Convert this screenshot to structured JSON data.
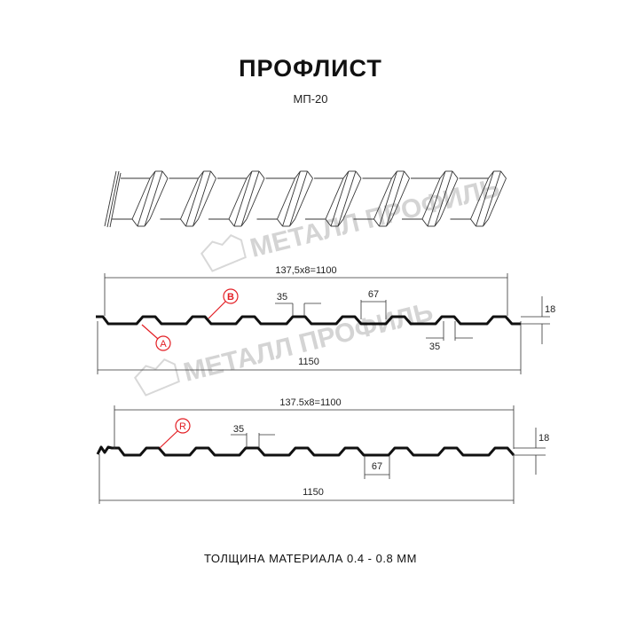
{
  "header": {
    "title": "ПРОФЛИСТ",
    "subtitle": "МП-20"
  },
  "watermark": "МЕТАЛЛ ПРОФИЛЬ",
  "profile1": {
    "pitch_label": "137,5x8=1100",
    "total_label": "1150",
    "rib_top_label": "35",
    "rib_bottom_label": "35",
    "rib_pitch_label": "67",
    "height_label": "18",
    "markers": [
      "B",
      "A"
    ]
  },
  "profile2": {
    "pitch_label": "137.5x8=1100",
    "total_label": "1150",
    "rib_top_label": "35",
    "rib_pitch_label": "67",
    "height_label": "18",
    "markers": [
      "R"
    ]
  },
  "footer": {
    "thickness": "ТОЛЩИНА МАТЕРИАЛА 0.4 - 0.8 ММ"
  },
  "colors": {
    "marker": "#e31e24",
    "line": "#111111",
    "watermark": "#d4d4d4"
  }
}
